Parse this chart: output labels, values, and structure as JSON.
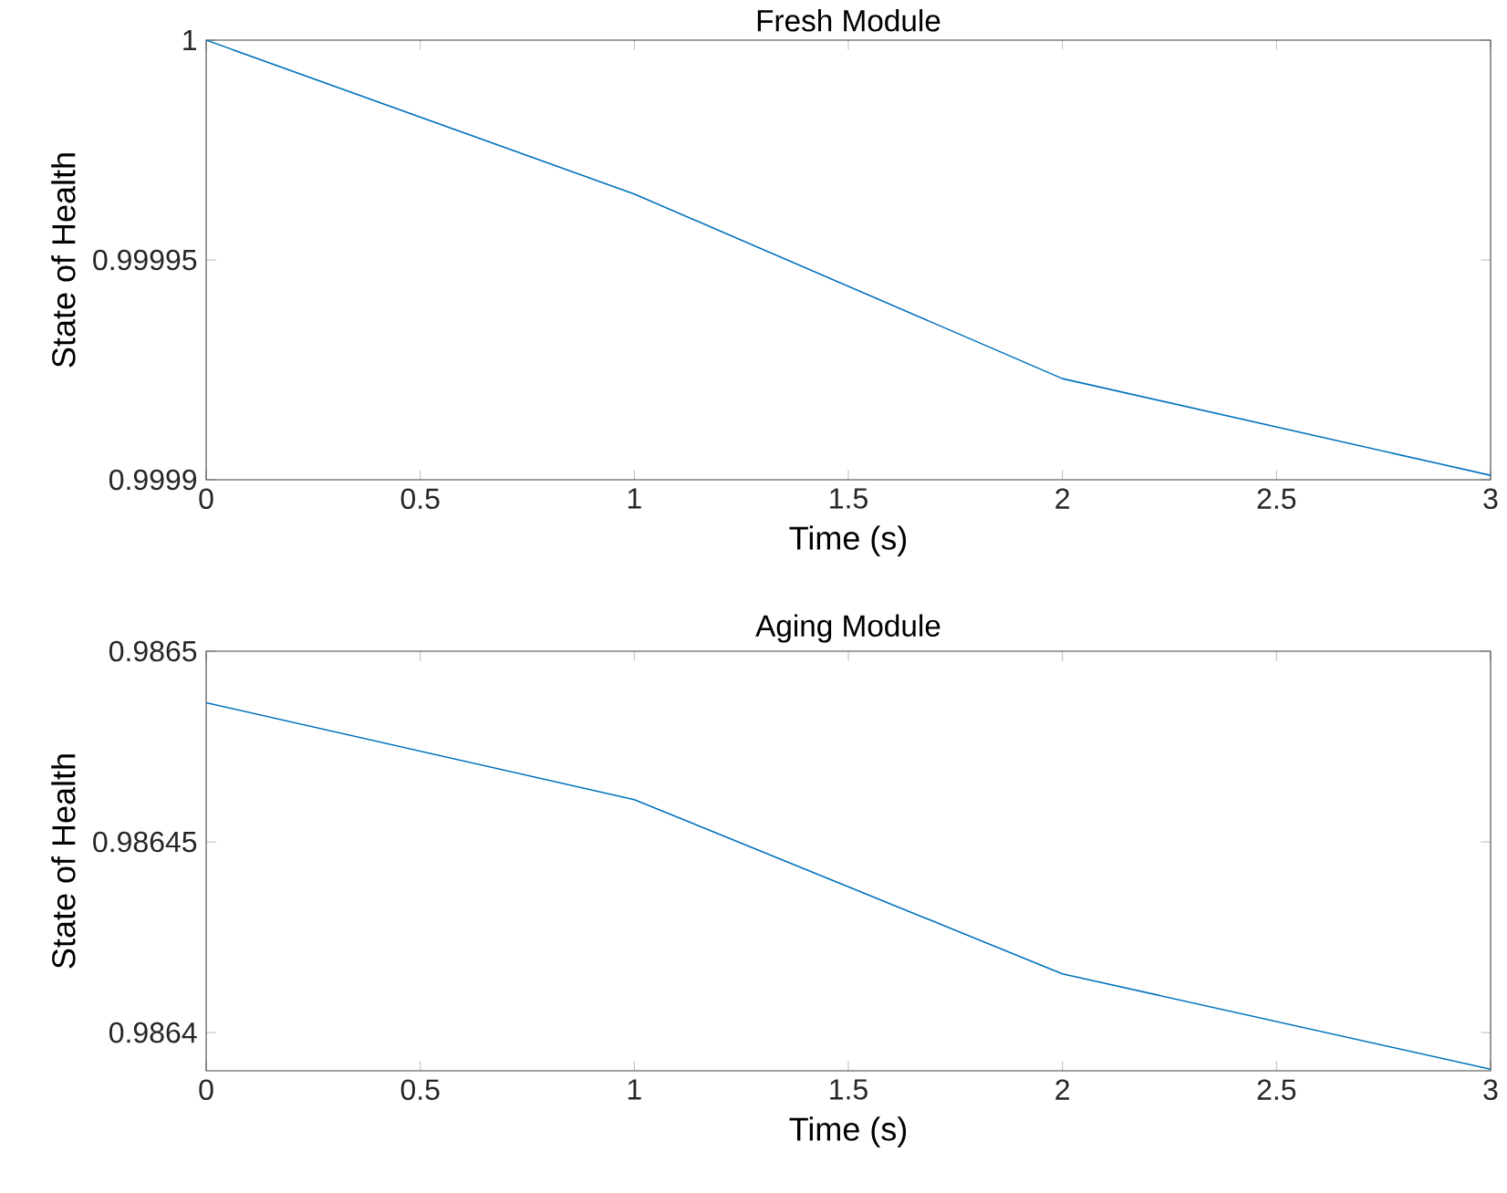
{
  "chart_data": [
    {
      "type": "line",
      "title": "Fresh Module",
      "xlabel": "Time (s)",
      "ylabel": "State of Health",
      "x": [
        0,
        1,
        2,
        3
      ],
      "series": [
        {
          "color": "#0072bd",
          "values": [
            1.0,
            0.999965,
            0.999923,
            0.999901
          ]
        }
      ],
      "xlim": [
        0,
        3
      ],
      "ylim": [
        0.9999,
        1.0
      ],
      "xticks": [
        0,
        0.5,
        1,
        1.5,
        2,
        2.5,
        3
      ],
      "yticks": [
        0.9999,
        0.99995,
        1
      ],
      "grid": false
    },
    {
      "type": "line",
      "title": "Aging Module",
      "xlabel": "Time (s)",
      "ylabel": "State of Health",
      "x": [
        0,
        1,
        2,
        3
      ],
      "series": [
        {
          "color": "#0072bd",
          "values": [
            0.9864865,
            0.9864611,
            0.9864154,
            0.9863904
          ]
        }
      ],
      "xlim": [
        0,
        3
      ],
      "ylim": [
        0.98639,
        0.9865
      ],
      "xticks": [
        0,
        0.5,
        1,
        1.5,
        2,
        2.5,
        3
      ],
      "yticks": [
        0.9864,
        0.98645,
        0.9865
      ],
      "grid": false
    }
  ]
}
